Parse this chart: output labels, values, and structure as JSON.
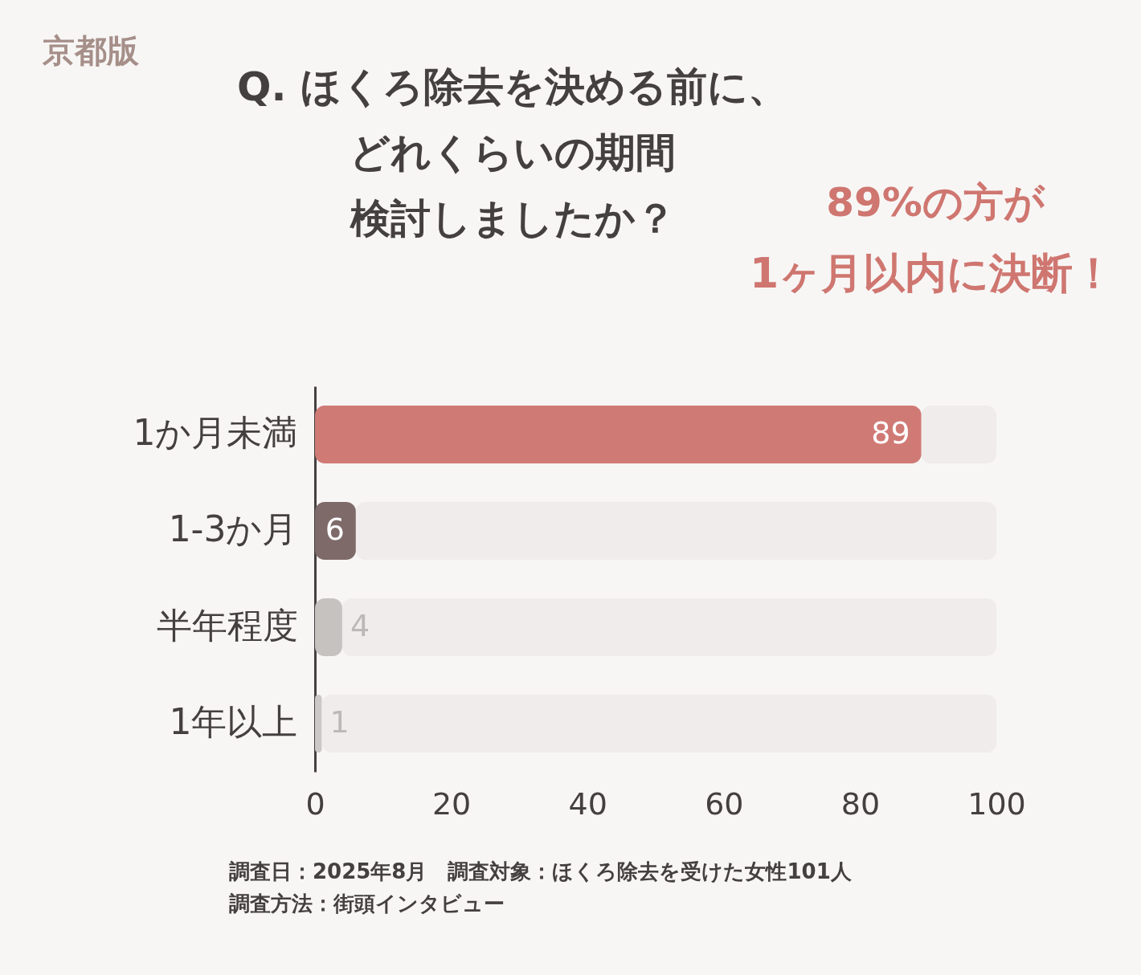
{
  "chart_data": {
    "type": "bar",
    "orientation": "horizontal",
    "stacked": true,
    "title": "Q. ほくろ除去を決める前に、どれくらいの期間検討しましたか？",
    "categories": [
      "1か月未満",
      "1-3か月",
      "半年程度",
      "1年以上"
    ],
    "series": [
      {
        "values": [
          89,
          6,
          4,
          1
        ],
        "colors": [
          "#d07a75",
          "#7e6b69",
          "#c6c2c0",
          "#cbc8c6"
        ],
        "value_labels": [
          "89",
          "6",
          "4",
          "1"
        ]
      },
      {
        "color": "#efeceb",
        "values": [
          11,
          94,
          96,
          99
        ]
      }
    ],
    "xlim": [
      0,
      100
    ],
    "xticks": [
      0,
      20,
      40,
      60,
      80,
      100
    ],
    "annotations": [
      "京都版",
      "89%の方が",
      "1ヶ月以内に決断！",
      "調査日：2025年8月　調査対象：ほくろ除去を受けた女性101人",
      "調査方法：街頭インタビュー"
    ]
  }
}
